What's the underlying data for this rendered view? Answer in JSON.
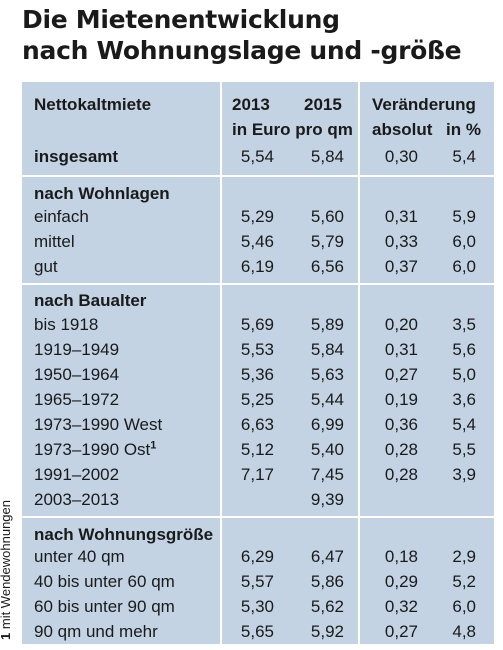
{
  "title": {
    "line1": "Die Mietenentwicklung",
    "line2": "nach Wohnungslage und -größe"
  },
  "header": {
    "label": "Nettokaltmiete",
    "year1": "2013",
    "year2": "2015",
    "unit": "in Euro pro qm",
    "change": "Veränderung",
    "abs": "absolut",
    "pct": "in %"
  },
  "total": {
    "label": "insgesamt",
    "v2013": "5,54",
    "v2015": "5,84",
    "abs": "0,30",
    "pct": "5,4"
  },
  "sections": [
    {
      "heading": "nach Wohnlagen",
      "rows": [
        {
          "label": "einfach",
          "v2013": "5,29",
          "v2015": "5,60",
          "abs": "0,31",
          "pct": "5,9"
        },
        {
          "label": "mittel",
          "v2013": "5,46",
          "v2015": "5,79",
          "abs": "0,33",
          "pct": "6,0"
        },
        {
          "label": "gut",
          "v2013": "6,19",
          "v2015": "6,56",
          "abs": "0,37",
          "pct": "6,0"
        }
      ]
    },
    {
      "heading": "nach Baualter",
      "rows": [
        {
          "label": "bis 1918",
          "v2013": "5,69",
          "v2015": "5,89",
          "abs": "0,20",
          "pct": "3,5"
        },
        {
          "label": "1919–1949",
          "v2013": "5,53",
          "v2015": "5,84",
          "abs": "0,31",
          "pct": "5,6"
        },
        {
          "label": "1950–1964",
          "v2013": "5,36",
          "v2015": "5,63",
          "abs": "0,27",
          "pct": "5,0"
        },
        {
          "label": "1965–1972",
          "v2013": "5,25",
          "v2015": "5,44",
          "abs": "0,19",
          "pct": "3,6"
        },
        {
          "label": "1973–1990 West",
          "v2013": "6,63",
          "v2015": "6,99",
          "abs": "0,36",
          "pct": "5,4"
        },
        {
          "label": "1973–1990 Ost",
          "sup": "1",
          "v2013": "5,12",
          "v2015": "5,40",
          "abs": "0,28",
          "pct": "5,5"
        },
        {
          "label": "1991–2002",
          "v2013": "7,17",
          "v2015": "7,45",
          "abs": "0,28",
          "pct": "3,9"
        },
        {
          "label": "2003–2013",
          "v2013": "",
          "v2015": "9,39",
          "abs": "",
          "pct": ""
        }
      ]
    },
    {
      "heading": "nach Wohnungsgröße",
      "rows": [
        {
          "label": "unter 40 qm",
          "v2013": "6,29",
          "v2015": "6,47",
          "abs": "0,18",
          "pct": "2,9"
        },
        {
          "label": "40 bis unter 60 qm",
          "v2013": "5,57",
          "v2015": "5,86",
          "abs": "0,29",
          "pct": "5,2"
        },
        {
          "label": "60 bis unter 90 qm",
          "v2013": "5,30",
          "v2015": "5,62",
          "abs": "0,32",
          "pct": "6,0"
        },
        {
          "label": "90 qm und mehr",
          "v2013": "5,65",
          "v2015": "5,92",
          "abs": "0,27",
          "pct": "4,8"
        }
      ]
    }
  ],
  "footnote": {
    "num": "1",
    "text": "mit Wendewohnungen"
  }
}
